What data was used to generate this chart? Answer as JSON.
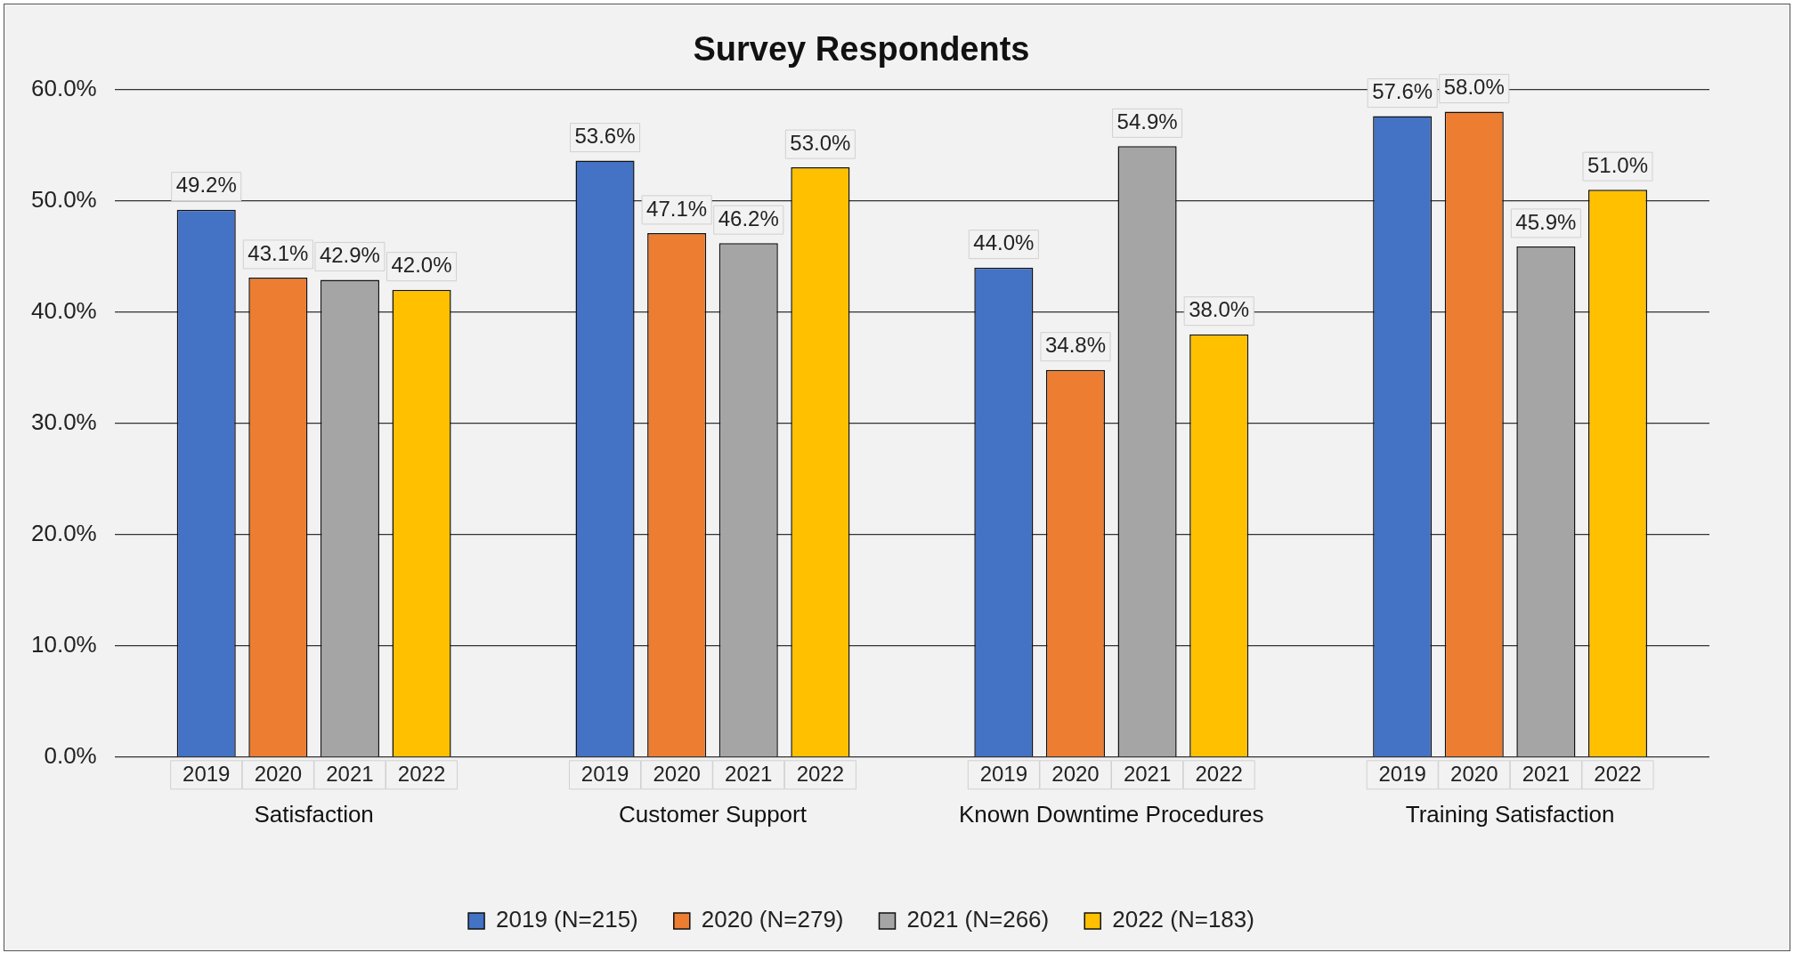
{
  "chart_data": {
    "type": "bar",
    "title": "Survey Respondents",
    "categories": [
      "Satisfaction",
      "Customer Support",
      "Known Downtime Procedures",
      "Training Satisfaction"
    ],
    "series": [
      {
        "name": "2019 (N=215)",
        "color": "#4472c4",
        "values": [
          49.2,
          53.6,
          44.0,
          57.6
        ],
        "value_labels": [
          "49.2%",
          "53.6%",
          "44.0%",
          "57.6%"
        ]
      },
      {
        "name": "2020 (N=279)",
        "color": "#ed7d31",
        "values": [
          43.1,
          47.1,
          34.8,
          58.0
        ],
        "value_labels": [
          "43.1%",
          "47.1%",
          "34.8%",
          "58.0%"
        ]
      },
      {
        "name": "2021 (N=266)",
        "color": "#a5a5a5",
        "values": [
          42.9,
          46.2,
          54.9,
          45.9
        ],
        "value_labels": [
          "42.9%",
          "46.2%",
          "54.9%",
          "45.9%"
        ]
      },
      {
        "name": "2022 (N=183)",
        "color": "#ffc000",
        "values": [
          42.0,
          53.0,
          38.0,
          51.0
        ],
        "value_labels": [
          "42.0%",
          "53.0%",
          "38.0%",
          "51.0%"
        ]
      }
    ],
    "annotations": [
      "2019",
      "2020",
      "2021",
      "2022",
      "2019",
      "2020",
      "2021",
      "2022",
      "2019",
      "2020",
      "2021",
      "2022",
      "2019",
      "2020",
      "2021",
      "2022"
    ],
    "ylim": [
      0,
      60
    ],
    "yticks": [
      {
        "value": 0,
        "label": "0.0%"
      },
      {
        "value": 10,
        "label": "10.0%"
      },
      {
        "value": 20,
        "label": "20.0%"
      },
      {
        "value": 30,
        "label": "30.0%"
      },
      {
        "value": 40,
        "label": "40.0%"
      },
      {
        "value": 50,
        "label": "50.0%"
      },
      {
        "value": 60,
        "label": "60.0%"
      }
    ],
    "grid": "y",
    "legend": "bottom"
  }
}
